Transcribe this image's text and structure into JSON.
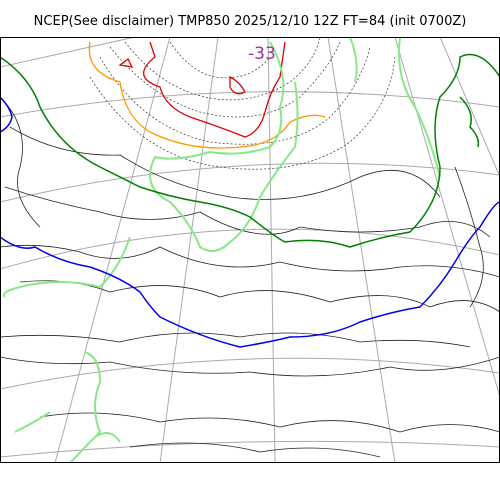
{
  "title": "NCEP(See disclaimer) TMP850 2025/12/10 12Z FT=84 (init 0700Z)",
  "annotation": {
    "text": "-33",
    "color": "#993399"
  },
  "colors": {
    "frame": "#000000",
    "grid": "#aaaaaa",
    "contour": "#000000",
    "cold_red": "#dd0000",
    "orange": "#ff9900",
    "light_green": "#88e888",
    "green": "#008000",
    "blue": "#0000ee"
  }
}
